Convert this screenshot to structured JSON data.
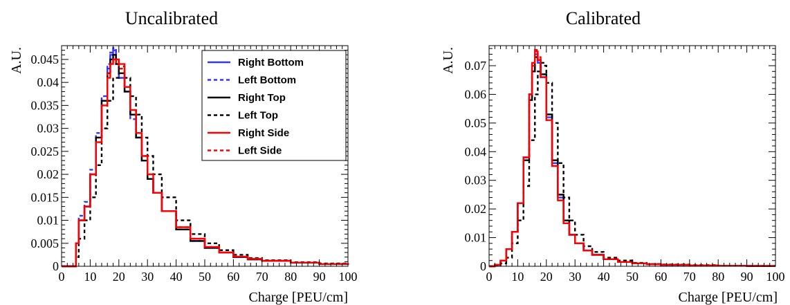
{
  "chart_data": [
    {
      "type": "line",
      "title": "Uncalibrated",
      "xlabel": "Charge [PEU/cm]",
      "ylabel": "A.U.",
      "xlim": [
        0,
        100
      ],
      "ylim": [
        0,
        0.048
      ],
      "xticks": [
        0,
        10,
        20,
        30,
        40,
        50,
        60,
        70,
        80,
        90,
        100
      ],
      "xtick_labels": [
        "0",
        "10",
        "20",
        "30",
        "40",
        "50",
        "60",
        "70",
        "80",
        "90",
        "100"
      ],
      "yticks": [
        0,
        0.005,
        0.01,
        0.015,
        0.02,
        0.025,
        0.03,
        0.035,
        0.04,
        0.045
      ],
      "ytick_labels": [
        "0",
        "0.005",
        "0.01",
        "0.015",
        "0.02",
        "0.025",
        "0.03",
        "0.035",
        "0.04",
        "0.045"
      ],
      "grid": false,
      "legend": "top-right",
      "series": [
        {
          "name": "Right Bottom",
          "color": "#3333ff",
          "dash": "solid",
          "x": [
            0,
            4,
            5,
            6,
            8,
            10,
            12,
            14,
            16,
            17,
            18,
            19,
            20,
            22,
            24,
            26,
            28,
            30,
            32,
            35,
            40,
            45,
            50,
            55,
            60,
            65,
            70,
            80,
            90,
            100
          ],
          "y": [
            0,
            0,
            0.005,
            0.01,
            0.013,
            0.02,
            0.028,
            0.036,
            0.043,
            0.046,
            0.047,
            0.044,
            0.041,
            0.038,
            0.033,
            0.028,
            0.023,
            0.019,
            0.016,
            0.012,
            0.008,
            0.0055,
            0.004,
            0.003,
            0.002,
            0.0015,
            0.0012,
            0.0008,
            0.0005,
            0.0003
          ]
        },
        {
          "name": "Left Bottom",
          "color": "#3333ff",
          "dash": "dashed",
          "x": [
            0,
            4,
            5,
            6,
            8,
            10,
            12,
            14,
            16,
            17,
            18,
            19,
            20,
            22,
            24,
            26,
            28,
            30,
            32,
            35,
            40,
            45,
            50,
            55,
            60,
            65,
            70,
            80,
            90,
            100
          ],
          "y": [
            0,
            0,
            0.005,
            0.011,
            0.014,
            0.021,
            0.029,
            0.037,
            0.044,
            0.0465,
            0.0475,
            0.045,
            0.041,
            0.038,
            0.032,
            0.028,
            0.023,
            0.019,
            0.016,
            0.012,
            0.008,
            0.0055,
            0.004,
            0.003,
            0.002,
            0.0015,
            0.0012,
            0.0008,
            0.0005,
            0.0003
          ]
        },
        {
          "name": "Right Top",
          "color": "#000000",
          "dash": "solid",
          "x": [
            0,
            4,
            5,
            6,
            8,
            10,
            12,
            14,
            16,
            17,
            18,
            19,
            20,
            22,
            24,
            26,
            28,
            30,
            32,
            35,
            40,
            45,
            50,
            55,
            60,
            65,
            70,
            80,
            90,
            100
          ],
          "y": [
            0,
            0,
            0.005,
            0.01,
            0.013,
            0.02,
            0.028,
            0.036,
            0.042,
            0.045,
            0.046,
            0.044,
            0.042,
            0.038,
            0.033,
            0.028,
            0.023,
            0.019,
            0.016,
            0.012,
            0.008,
            0.0055,
            0.004,
            0.003,
            0.002,
            0.0015,
            0.0012,
            0.0008,
            0.0005,
            0.0003
          ]
        },
        {
          "name": "Left Top",
          "color": "#000000",
          "dash": "dashed",
          "x": [
            0,
            4,
            5,
            6,
            8,
            10,
            12,
            14,
            16,
            18,
            20,
            21,
            22,
            24,
            26,
            28,
            30,
            32,
            35,
            40,
            45,
            50,
            55,
            60,
            65,
            70,
            80,
            90,
            100
          ],
          "y": [
            0,
            0,
            0.002,
            0.006,
            0.01,
            0.015,
            0.022,
            0.03,
            0.036,
            0.041,
            0.043,
            0.0435,
            0.041,
            0.037,
            0.033,
            0.028,
            0.024,
            0.02,
            0.015,
            0.01,
            0.007,
            0.005,
            0.0035,
            0.0025,
            0.0018,
            0.0013,
            0.0009,
            0.0006,
            0.0004
          ]
        },
        {
          "name": "Right Side",
          "color": "#ff0000",
          "dash": "solid",
          "x": [
            0,
            4,
            5,
            6,
            8,
            10,
            12,
            14,
            16,
            17,
            18,
            19,
            20,
            22,
            24,
            26,
            28,
            30,
            32,
            35,
            40,
            45,
            50,
            55,
            60,
            65,
            70,
            80,
            90,
            100
          ],
          "y": [
            0,
            0,
            0.005,
            0.01,
            0.013,
            0.02,
            0.027,
            0.035,
            0.041,
            0.044,
            0.045,
            0.045,
            0.044,
            0.039,
            0.034,
            0.029,
            0.024,
            0.02,
            0.016,
            0.012,
            0.0085,
            0.006,
            0.0042,
            0.003,
            0.0021,
            0.0016,
            0.0012,
            0.0008,
            0.0005,
            0.0003
          ]
        },
        {
          "name": "Left Side",
          "color": "#ff0000",
          "dash": "dashed",
          "x": [
            0,
            4,
            5,
            6,
            8,
            10,
            12,
            14,
            16,
            17,
            18,
            19,
            20,
            22,
            24,
            26,
            28,
            30,
            32,
            35,
            40,
            45,
            50,
            55,
            60,
            65,
            70,
            80,
            90,
            100
          ],
          "y": [
            0,
            0,
            0.005,
            0.01,
            0.013,
            0.02,
            0.027,
            0.035,
            0.042,
            0.044,
            0.045,
            0.044,
            0.043,
            0.039,
            0.034,
            0.029,
            0.024,
            0.02,
            0.016,
            0.012,
            0.0085,
            0.006,
            0.0042,
            0.003,
            0.0021,
            0.0016,
            0.0012,
            0.0008,
            0.0005,
            0.0003
          ]
        }
      ]
    },
    {
      "type": "line",
      "title": "Calibrated",
      "xlabel": "Charge [PEU/cm]",
      "ylabel": "A.U.",
      "xlim": [
        0,
        100
      ],
      "ylim": [
        0,
        0.077
      ],
      "xticks": [
        0,
        10,
        20,
        30,
        40,
        50,
        60,
        70,
        80,
        90,
        100
      ],
      "xtick_labels": [
        "0",
        "10",
        "20",
        "30",
        "40",
        "50",
        "60",
        "70",
        "80",
        "90",
        "100"
      ],
      "yticks": [
        0,
        0.01,
        0.02,
        0.03,
        0.04,
        0.05,
        0.06,
        0.07
      ],
      "ytick_labels": [
        "0",
        "0.01",
        "0.02",
        "0.03",
        "0.04",
        "0.05",
        "0.06",
        "0.07"
      ],
      "grid": false,
      "legend": "none",
      "series": [
        {
          "name": "Right Bottom",
          "color": "#3333ff",
          "dash": "solid",
          "x": [
            0,
            2,
            4,
            6,
            8,
            10,
            12,
            14,
            15,
            16,
            17,
            18,
            20,
            22,
            24,
            26,
            28,
            30,
            33,
            36,
            40,
            45,
            50,
            55,
            60,
            70,
            80,
            90,
            100
          ],
          "y": [
            0,
            0.0005,
            0.002,
            0.006,
            0.012,
            0.022,
            0.038,
            0.06,
            0.07,
            0.074,
            0.071,
            0.066,
            0.052,
            0.036,
            0.024,
            0.016,
            0.011,
            0.008,
            0.0055,
            0.004,
            0.0025,
            0.0015,
            0.001,
            0.0007,
            0.0005,
            0.0003,
            0.0002,
            0.0001,
            0.0001
          ]
        },
        {
          "name": "Left Bottom",
          "color": "#3333ff",
          "dash": "dashed",
          "x": [
            0,
            2,
            4,
            6,
            8,
            10,
            12,
            14,
            15,
            16,
            17,
            18,
            20,
            22,
            24,
            26,
            28,
            30,
            33,
            36,
            40,
            45,
            50,
            55,
            60,
            70,
            80,
            90,
            100
          ],
          "y": [
            0,
            0.0005,
            0.002,
            0.006,
            0.012,
            0.022,
            0.038,
            0.059,
            0.068,
            0.073,
            0.072,
            0.067,
            0.053,
            0.037,
            0.025,
            0.016,
            0.011,
            0.008,
            0.0055,
            0.004,
            0.0025,
            0.0015,
            0.001,
            0.0007,
            0.0005,
            0.0003,
            0.0002,
            0.0001,
            0.0001
          ]
        },
        {
          "name": "Right Top",
          "color": "#000000",
          "dash": "solid",
          "x": [
            0,
            2,
            4,
            6,
            8,
            10,
            12,
            14,
            15,
            16,
            17,
            18,
            20,
            22,
            24,
            26,
            28,
            30,
            33,
            36,
            40,
            45,
            50,
            55,
            60,
            70,
            80,
            90,
            100
          ],
          "y": [
            0,
            0.0005,
            0.002,
            0.006,
            0.012,
            0.022,
            0.037,
            0.058,
            0.068,
            0.073,
            0.072,
            0.067,
            0.053,
            0.037,
            0.025,
            0.016,
            0.011,
            0.008,
            0.0055,
            0.004,
            0.0025,
            0.0015,
            0.001,
            0.0007,
            0.0005,
            0.0003,
            0.0002,
            0.0001,
            0.0001
          ]
        },
        {
          "name": "Left Top",
          "color": "#000000",
          "dash": "dashed",
          "x": [
            0,
            2,
            4,
            6,
            8,
            10,
            12,
            14,
            16,
            17,
            18,
            19,
            20,
            22,
            24,
            26,
            28,
            30,
            33,
            36,
            40,
            45,
            50,
            55,
            60,
            70,
            80,
            90,
            100
          ],
          "y": [
            0,
            0.0003,
            0.001,
            0.003,
            0.008,
            0.016,
            0.028,
            0.044,
            0.06,
            0.068,
            0.071,
            0.07,
            0.064,
            0.05,
            0.036,
            0.024,
            0.016,
            0.011,
            0.007,
            0.005,
            0.003,
            0.002,
            0.0012,
            0.0008,
            0.0006,
            0.0004,
            0.0002,
            0.0001,
            0.0001
          ]
        },
        {
          "name": "Right Side",
          "color": "#ff0000",
          "dash": "solid",
          "x": [
            0,
            2,
            4,
            6,
            8,
            10,
            12,
            14,
            15,
            16,
            17,
            18,
            20,
            22,
            24,
            26,
            28,
            30,
            33,
            36,
            40,
            45,
            50,
            55,
            60,
            70,
            80,
            90,
            100
          ],
          "y": [
            0,
            0.0005,
            0.002,
            0.006,
            0.012,
            0.022,
            0.038,
            0.06,
            0.071,
            0.075,
            0.072,
            0.066,
            0.051,
            0.035,
            0.023,
            0.015,
            0.011,
            0.008,
            0.0055,
            0.004,
            0.0025,
            0.0015,
            0.001,
            0.0007,
            0.0005,
            0.0003,
            0.0002,
            0.0001,
            0.0001
          ]
        },
        {
          "name": "Left Side",
          "color": "#ff0000",
          "dash": "dashed",
          "x": [
            0,
            2,
            4,
            6,
            8,
            10,
            12,
            14,
            15,
            16,
            17,
            18,
            20,
            22,
            24,
            26,
            28,
            30,
            33,
            36,
            40,
            45,
            50,
            55,
            60,
            70,
            80,
            90,
            100
          ],
          "y": [
            0,
            0.0005,
            0.002,
            0.006,
            0.012,
            0.022,
            0.038,
            0.06,
            0.07,
            0.0755,
            0.073,
            0.066,
            0.051,
            0.035,
            0.023,
            0.015,
            0.011,
            0.008,
            0.0055,
            0.004,
            0.0025,
            0.0015,
            0.001,
            0.0007,
            0.0005,
            0.0003,
            0.0002,
            0.0001,
            0.0001
          ]
        }
      ]
    }
  ]
}
